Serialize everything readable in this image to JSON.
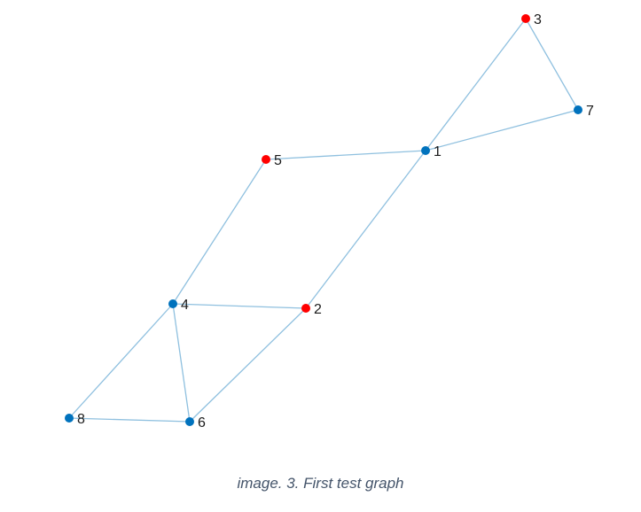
{
  "caption": "image. 3. First test graph",
  "colors": {
    "edge": "#8fc0df",
    "node_default": "#0072bd",
    "node_highlight": "#ff0000",
    "label": "#1a1a1a",
    "caption": "#44546a"
  },
  "graph": {
    "nodes": [
      {
        "id": "1",
        "label": "1",
        "highlighted": false
      },
      {
        "id": "2",
        "label": "2",
        "highlighted": true
      },
      {
        "id": "3",
        "label": "3",
        "highlighted": true
      },
      {
        "id": "4",
        "label": "4",
        "highlighted": false
      },
      {
        "id": "5",
        "label": "5",
        "highlighted": true
      },
      {
        "id": "6",
        "label": "6",
        "highlighted": false
      },
      {
        "id": "7",
        "label": "7",
        "highlighted": false
      },
      {
        "id": "8",
        "label": "8",
        "highlighted": false
      }
    ],
    "edges": [
      [
        "1",
        "3"
      ],
      [
        "1",
        "7"
      ],
      [
        "3",
        "7"
      ],
      [
        "1",
        "5"
      ],
      [
        "1",
        "2"
      ],
      [
        "5",
        "4"
      ],
      [
        "4",
        "2"
      ],
      [
        "4",
        "8"
      ],
      [
        "4",
        "6"
      ],
      [
        "2",
        "6"
      ],
      [
        "8",
        "6"
      ]
    ]
  }
}
